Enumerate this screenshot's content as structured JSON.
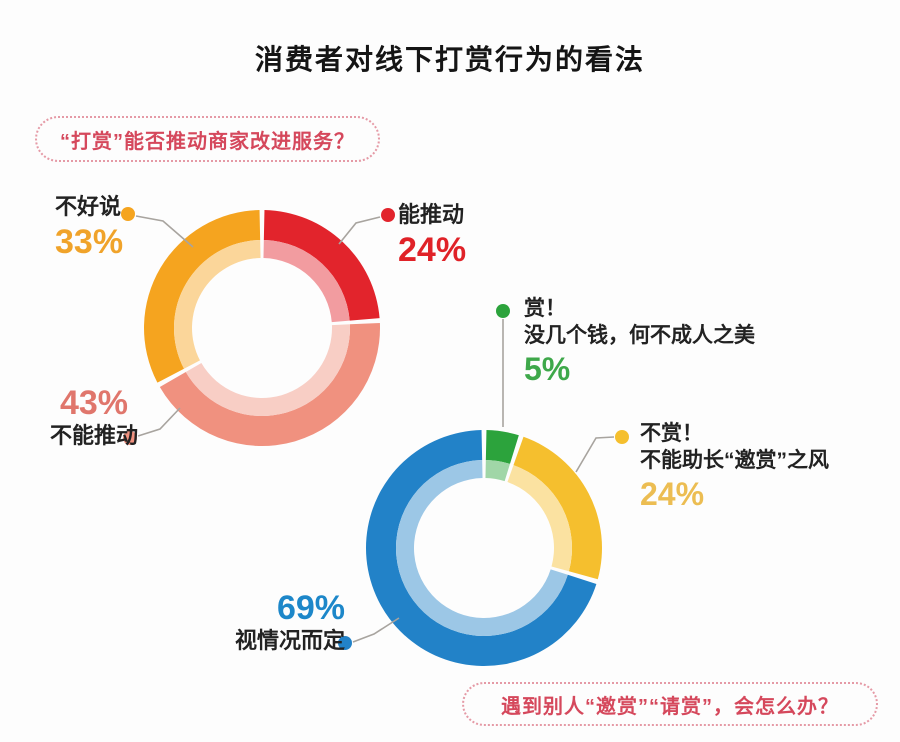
{
  "title": "消费者对线下打赏行为的看法",
  "background_color": "#fdfdfd",
  "question_box_style": {
    "text_color": "#d5485c",
    "border_color": "#e59aa6"
  },
  "connector_line_color": "#a8a49f",
  "chart_data": [
    {
      "type": "pie",
      "donut": true,
      "title": "“打赏”能否推动商家改进服务？",
      "start_angle_deg_from_top": 0,
      "direction": "clockwise",
      "segments": [
        {
          "key": "can-promote",
          "name": "能推动",
          "value": 24,
          "pct_text": "24%",
          "color": "#e2242c",
          "pct_color": "#e02228"
        },
        {
          "key": "cannot-promote",
          "name": "不能推动",
          "value": 43,
          "pct_text": "43%",
          "color": "#f0917f",
          "pct_color": "#e0766c"
        },
        {
          "key": "hard-to-say",
          "name": "不好说",
          "value": 33,
          "pct_text": "33%",
          "color": "#f5a41f",
          "pct_color": "#f0a32a"
        }
      ]
    },
    {
      "type": "pie",
      "donut": true,
      "title": "遇到别人“邀赏”“请赏”，会怎么办？",
      "start_angle_deg_from_top": 0,
      "direction": "clockwise",
      "segments": [
        {
          "key": "tip",
          "name": "赏！",
          "subtitle": "没几个钱，何不成人之美",
          "value": 5,
          "pct_text": "5%",
          "color": "#2ca33c",
          "pct_color": "#3ea84a"
        },
        {
          "key": "no-tip",
          "name": "不赏！",
          "subtitle": "不能助长“邀赏”之风",
          "value": 24,
          "pct_text": "24%",
          "color": "#f5bf2e",
          "pct_color": "#ecbd52"
        },
        {
          "key": "depends",
          "name": "视情况而定",
          "value": 69,
          "pct_text": "69%",
          "color": "#2282c8",
          "pct_color": "#1d87c9"
        }
      ]
    }
  ]
}
